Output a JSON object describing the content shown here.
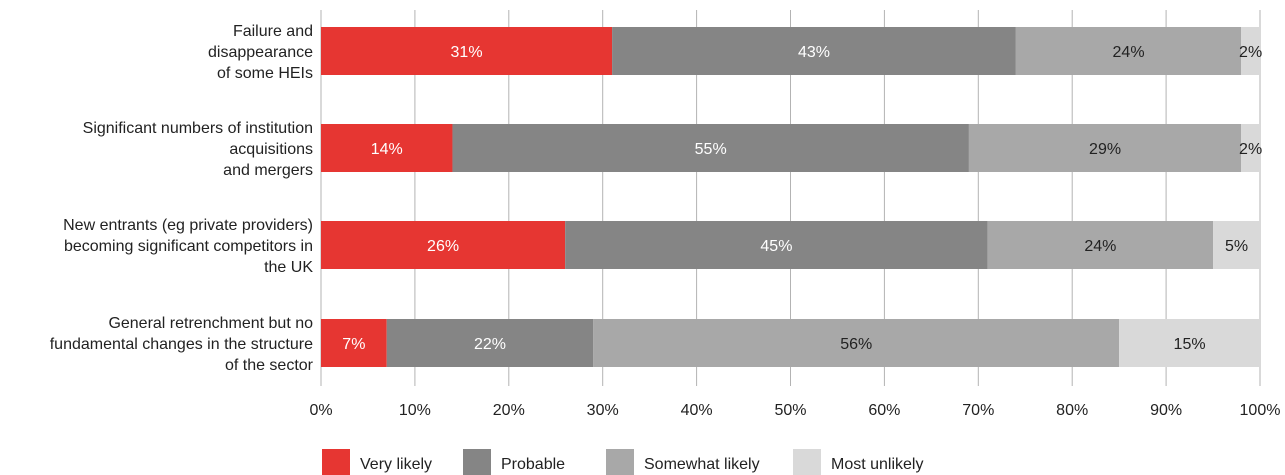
{
  "chart_data": {
    "type": "bar",
    "orientation": "horizontal",
    "stacked": true,
    "categories": [
      [
        "Failure and",
        "disappearance",
        "of some HEIs"
      ],
      [
        "Significant numbers of institution",
        "acquisitions",
        "and mergers"
      ],
      [
        "New entrants (eg private providers)",
        "becoming significant competitors in",
        "the UK"
      ],
      [
        "General retrenchment but no",
        "fundamental changes in the structure",
        "of the sector"
      ]
    ],
    "series": [
      {
        "name": "Very likely",
        "color": "#e63632",
        "label_color": "#ffffff",
        "values": [
          31,
          14,
          26,
          7
        ],
        "labels": [
          "31%",
          "14%",
          "26%",
          "7%"
        ]
      },
      {
        "name": "Probable",
        "color": "#858585",
        "label_color": "#ffffff",
        "values": [
          43,
          55,
          45,
          22
        ],
        "labels": [
          "43%",
          "55%",
          "45%",
          "22%"
        ]
      },
      {
        "name": "Somewhat likely",
        "color": "#a8a8a8",
        "label_color": "#222222",
        "values": [
          24,
          29,
          24,
          56
        ],
        "labels": [
          "24%",
          "29%",
          "24%",
          "56%"
        ]
      },
      {
        "name": "Most unlikely",
        "color": "#d9d9d9",
        "label_color": "#222222",
        "values": [
          2,
          2,
          5,
          15
        ],
        "labels": [
          "2%",
          "2%",
          "5%",
          "15%"
        ]
      }
    ],
    "xlim": [
      0,
      100
    ],
    "xticks": [
      "0%",
      "10%",
      "20%",
      "30%",
      "40%",
      "50%",
      "60%",
      "70%",
      "80%",
      "90%",
      "100%"
    ],
    "grid": true,
    "legend": "bottom"
  }
}
